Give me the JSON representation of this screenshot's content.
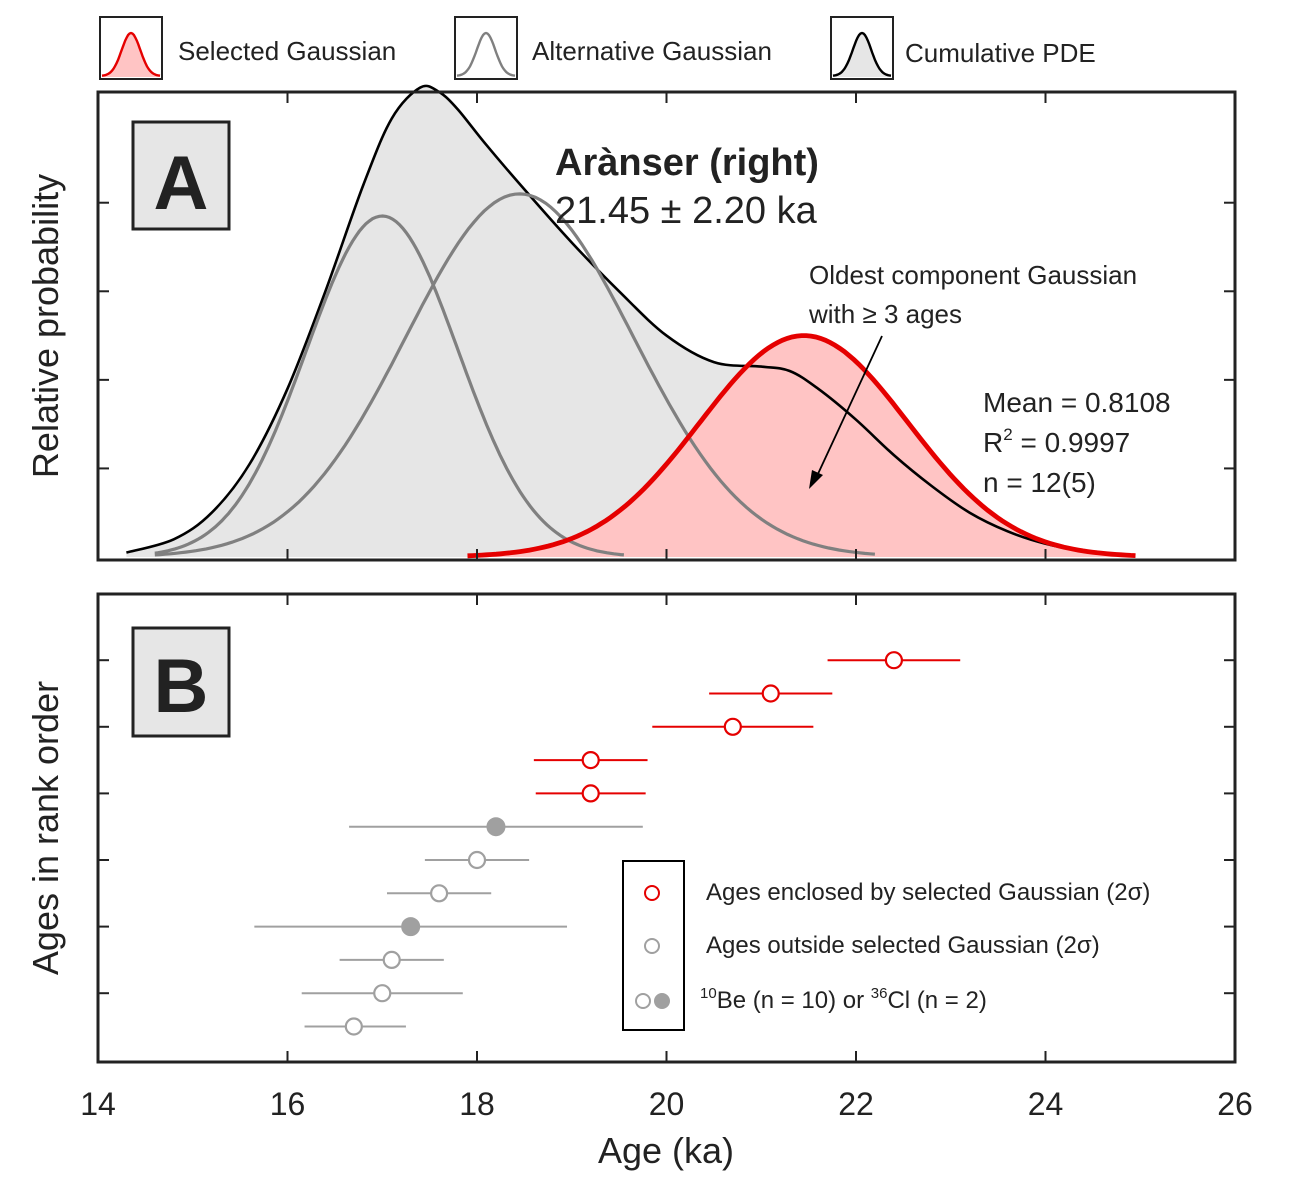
{
  "legend_top": {
    "selected": "Selected Gaussian",
    "alternative": "Alternative Gaussian",
    "cumulative": "Cumulative PDE"
  },
  "panel_a": {
    "label": "A",
    "site": "Arànser (right)",
    "age": "21.45 ± 2.20 ka",
    "annotation_line1": "Oldest component Gaussian",
    "annotation_line2": "with ≥ 3 ages",
    "stat_mean": "Mean = 0.8108",
    "stat_r_prefix": "R",
    "stat_r_sup": "2",
    "stat_r_value": " = 0.9997",
    "stat_n": "n = 12(5)",
    "ylabel": "Relative probability"
  },
  "panel_b": {
    "label": "B",
    "ylabel": "Ages in rank order",
    "legend": {
      "enclosed": "Ages enclosed by selected Gaussian (2σ)",
      "outside": "Ages outside selected Gaussian (2σ)",
      "be_sup": "10",
      "be_text": "Be (n = 10) or ",
      "cl_sup": "36",
      "cl_text": "Cl (n = 2)"
    }
  },
  "xlabel": "Age (ka)",
  "colors": {
    "selected": "#e50000",
    "selected_fill": "#ffc4c4",
    "alternative": "#808080",
    "cumulative_fill": "#e6e6e6",
    "outside": "#a0a0a0",
    "axis": "#222222"
  },
  "chart_data": [
    {
      "type": "area",
      "panel": "A",
      "xlim": [
        14,
        26
      ],
      "ylim": [
        0,
        1.05
      ],
      "xticks": [
        14,
        16,
        18,
        20,
        22,
        24,
        26
      ],
      "series": [
        {
          "name": "Selected Gaussian",
          "mean": 21.45,
          "sigma": 1.1,
          "peak": 0.5,
          "x_range": [
            17.9,
            24.95
          ]
        },
        {
          "name": "Alternative Gaussian",
          "mean": 17.0,
          "sigma": 0.8,
          "peak": 0.77,
          "x_range": [
            14.6,
            19.55
          ]
        },
        {
          "name": "Alternative Gaussian",
          "mean": 18.45,
          "sigma": 1.2,
          "peak": 0.82,
          "x_range": [
            14.6,
            22.2
          ]
        },
        {
          "name": "Cumulative PDE",
          "x": [
            14.3,
            14.8,
            15.2,
            15.6,
            16.0,
            16.4,
            16.8,
            17.1,
            17.4,
            17.6,
            17.8,
            18.1,
            18.5,
            19.0,
            19.5,
            20.0,
            20.5,
            21.0,
            21.3,
            21.6,
            22.0,
            22.4,
            22.8,
            23.2,
            23.6,
            24.0,
            24.4,
            24.8,
            24.95
          ],
          "y": [
            0.01,
            0.04,
            0.1,
            0.21,
            0.38,
            0.6,
            0.84,
            0.99,
            1.06,
            1.05,
            1.01,
            0.93,
            0.83,
            0.71,
            0.6,
            0.5,
            0.44,
            0.43,
            0.42,
            0.38,
            0.31,
            0.23,
            0.16,
            0.1,
            0.058,
            0.03,
            0.014,
            0.006,
            0.004
          ]
        }
      ]
    },
    {
      "type": "scatter",
      "panel": "B",
      "xlim": [
        14,
        26
      ],
      "xticks": [
        14,
        16,
        18,
        20,
        22,
        24,
        26
      ],
      "xticklabels": [
        "14",
        "16",
        "18",
        "20",
        "22",
        "24",
        "26"
      ],
      "xlabel": "Age (ka)",
      "ylabel": "Ages in rank order",
      "points": [
        {
          "rank": 1,
          "age": 16.7,
          "err_low": 16.18,
          "err_high": 17.25,
          "group": "outside",
          "nuclide": "10Be"
        },
        {
          "rank": 2,
          "age": 17.0,
          "err_low": 16.15,
          "err_high": 17.85,
          "group": "outside",
          "nuclide": "10Be"
        },
        {
          "rank": 3,
          "age": 17.1,
          "err_low": 16.55,
          "err_high": 17.65,
          "group": "outside",
          "nuclide": "10Be"
        },
        {
          "rank": 4,
          "age": 17.3,
          "err_low": 15.65,
          "err_high": 18.95,
          "group": "outside",
          "nuclide": "36Cl"
        },
        {
          "rank": 5,
          "age": 17.6,
          "err_low": 17.05,
          "err_high": 18.15,
          "group": "outside",
          "nuclide": "10Be"
        },
        {
          "rank": 6,
          "age": 18.0,
          "err_low": 17.45,
          "err_high": 18.55,
          "group": "outside",
          "nuclide": "10Be"
        },
        {
          "rank": 7,
          "age": 18.2,
          "err_low": 16.65,
          "err_high": 19.75,
          "group": "outside",
          "nuclide": "36Cl"
        },
        {
          "rank": 8,
          "age": 19.2,
          "err_low": 18.62,
          "err_high": 19.78,
          "group": "enclosed",
          "nuclide": "10Be"
        },
        {
          "rank": 9,
          "age": 19.2,
          "err_low": 18.6,
          "err_high": 19.8,
          "group": "enclosed",
          "nuclide": "10Be"
        },
        {
          "rank": 10,
          "age": 20.7,
          "err_low": 19.85,
          "err_high": 21.55,
          "group": "enclosed",
          "nuclide": "10Be"
        },
        {
          "rank": 11,
          "age": 21.1,
          "err_low": 20.45,
          "err_high": 21.75,
          "group": "enclosed",
          "nuclide": "10Be"
        },
        {
          "rank": 12,
          "age": 22.4,
          "err_low": 21.7,
          "err_high": 23.1,
          "group": "enclosed",
          "nuclide": "10Be"
        }
      ]
    }
  ]
}
